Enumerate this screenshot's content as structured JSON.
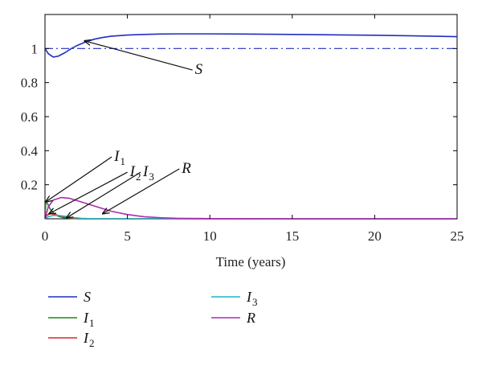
{
  "chart_data": {
    "type": "line",
    "xlabel": "Time (years)",
    "xlim": [
      0,
      25
    ],
    "ylim": [
      0,
      1.2
    ],
    "x_ticks": [
      0,
      5,
      10,
      15,
      20,
      25
    ],
    "x_tick_labels": [
      "0",
      "5",
      "10",
      "15",
      "20",
      "25"
    ],
    "y_ticks": [
      0.2,
      0.4,
      0.6,
      0.8,
      1
    ],
    "y_tick_labels": [
      "0.2",
      "0.4",
      "0.6",
      "0.8",
      "1"
    ],
    "reference_line": {
      "y": 1,
      "style": "dash-dot",
      "color": "#1f2fbf"
    },
    "grid": false,
    "series": [
      {
        "name": "S",
        "sub": "",
        "color": "#1f2fbf",
        "x": [
          0,
          0.2,
          0.5,
          0.8,
          1.2,
          1.6,
          2,
          2.5,
          3,
          3.5,
          4,
          5,
          6,
          7,
          8,
          10,
          12,
          15,
          18,
          20,
          22,
          25
        ],
        "y": [
          1.0,
          0.97,
          0.95,
          0.955,
          0.975,
          1.0,
          1.02,
          1.04,
          1.055,
          1.065,
          1.072,
          1.079,
          1.083,
          1.085,
          1.086,
          1.086,
          1.085,
          1.083,
          1.08,
          1.078,
          1.075,
          1.07
        ]
      },
      {
        "name": "I",
        "sub": "1",
        "color": "#1a8a1a",
        "x": [
          0,
          0.05,
          0.15,
          0.3,
          0.5,
          0.8,
          1.2,
          2,
          25
        ],
        "y": [
          0.0,
          0.1,
          0.09,
          0.06,
          0.035,
          0.015,
          0.005,
          0.0,
          0.0
        ]
      },
      {
        "name": "I",
        "sub": "2",
        "color": "#e02424",
        "x": [
          0,
          0.1,
          0.3,
          0.5,
          0.8,
          1.2,
          1.8,
          2.5,
          25
        ],
        "y": [
          0.0,
          0.02,
          0.03,
          0.028,
          0.02,
          0.01,
          0.003,
          0.0,
          0.0
        ]
      },
      {
        "name": "I",
        "sub": "3",
        "color": "#1fb5c8",
        "x": [
          0,
          0.2,
          0.5,
          0.8,
          1.2,
          1.6,
          2.2,
          3,
          25
        ],
        "y": [
          0.0,
          0.012,
          0.02,
          0.02,
          0.015,
          0.008,
          0.003,
          0.0,
          0.0
        ]
      },
      {
        "name": "R",
        "sub": "",
        "color": "#b02ab0",
        "x": [
          0,
          0.2,
          0.5,
          1,
          1.5,
          2,
          3,
          4,
          5,
          6,
          7,
          8,
          10,
          15,
          25
        ],
        "y": [
          0.0,
          0.07,
          0.11,
          0.125,
          0.12,
          0.105,
          0.075,
          0.045,
          0.025,
          0.012,
          0.006,
          0.003,
          0.001,
          0.0,
          0.0
        ]
      }
    ],
    "annotations": [
      {
        "main": "S",
        "sub": "",
        "text_x": 9,
        "text_y": 0.85,
        "tip_x": 2.4,
        "tip_y": 1.045
      },
      {
        "main": "I",
        "sub": "1",
        "text_x": 4.1,
        "text_y": 0.34,
        "tip_x": 0.05,
        "tip_y": 0.1
      },
      {
        "main": "I",
        "sub": "2",
        "text_x": 5.05,
        "text_y": 0.25,
        "tip_x": 0.25,
        "tip_y": 0.03
      },
      {
        "main": "I",
        "sub": "3",
        "text_x": 5.85,
        "text_y": 0.25,
        "tip_x": 1.3,
        "tip_y": 0.005
      },
      {
        "main": "R",
        "sub": "",
        "text_x": 8.2,
        "text_y": 0.27,
        "tip_x": 3.5,
        "tip_y": 0.03
      }
    ],
    "legend": {
      "placement": "bottom",
      "columns": 2,
      "entries": [
        {
          "main": "S",
          "sub": "",
          "color": "#1f2fbf"
        },
        {
          "main": "I",
          "sub": "1",
          "color": "#1a8a1a"
        },
        {
          "main": "I",
          "sub": "2",
          "color": "#e02424"
        },
        {
          "main": "I",
          "sub": "3",
          "color": "#1fb5c8"
        },
        {
          "main": "R",
          "sub": "",
          "color": "#b02ab0"
        }
      ]
    }
  }
}
